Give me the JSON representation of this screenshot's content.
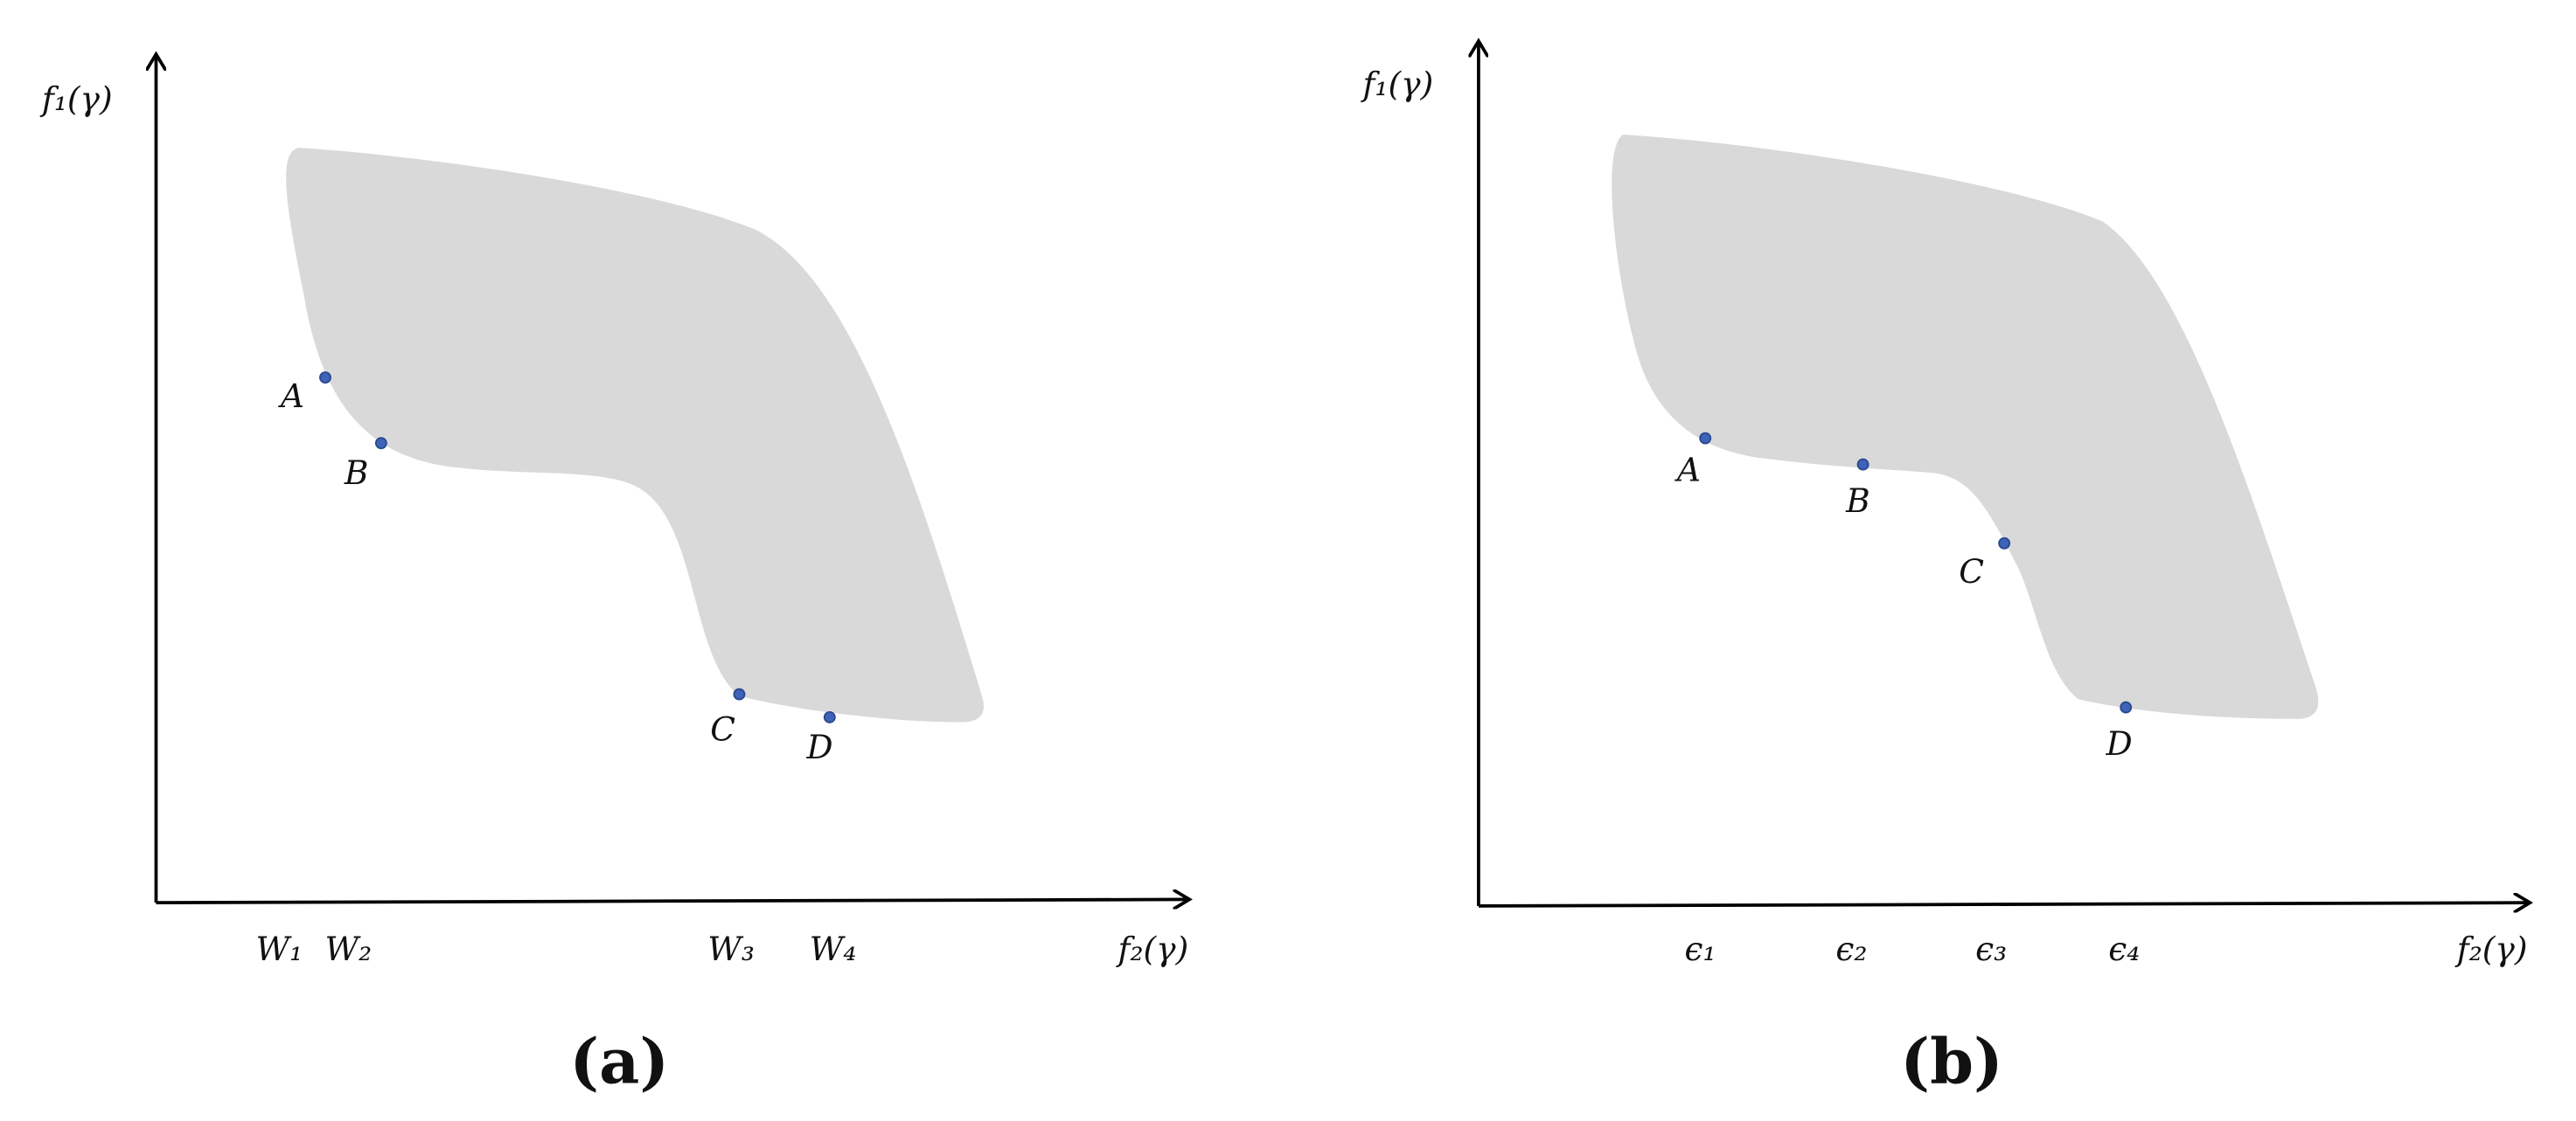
{
  "panels": [
    {
      "y_label": "f₁(γ)",
      "x_label": "f₂(γ)",
      "points": [
        "A",
        "B",
        "C",
        "D"
      ],
      "ticks": [
        "W₁",
        "W₂",
        "W₃",
        "W₄"
      ],
      "caption": "(a)"
    },
    {
      "y_label": "f₁(γ)",
      "x_label": "f₂(γ)",
      "points": [
        "A",
        "B",
        "C",
        "D"
      ],
      "ticks": [
        "ϵ₁",
        "ϵ₂",
        "ϵ₃",
        "ϵ₄"
      ],
      "caption": "(b)"
    }
  ]
}
